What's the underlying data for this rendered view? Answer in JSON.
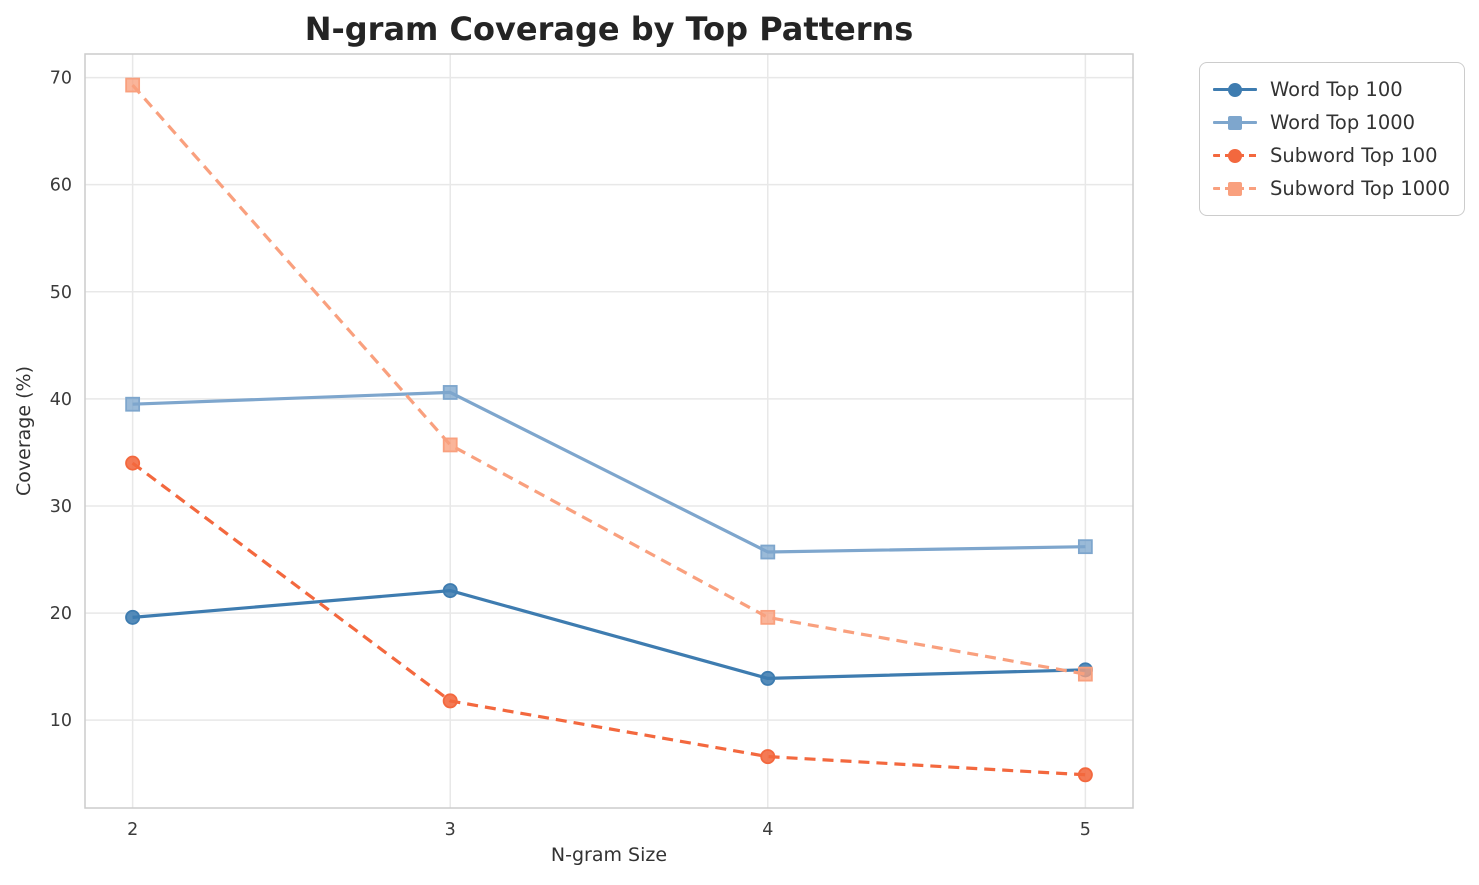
{
  "style": {
    "background": "#ffffff",
    "grid_color": "#e8e8e8",
    "spine_color": "#cccccc",
    "tick_color": "#3b3b3b",
    "title_color": "#242424",
    "label_color": "#333333",
    "legend_border": "#cccccc"
  },
  "chart_data": {
    "type": "line",
    "title": "N-gram Coverage by Top Patterns",
    "xlabel": "N-gram Size",
    "ylabel": "Coverage (%)",
    "x": [
      2,
      3,
      4,
      5
    ],
    "xticks": [
      "2",
      "3",
      "4",
      "5"
    ],
    "yticks": [
      10,
      20,
      30,
      40,
      50,
      60,
      70
    ],
    "xlim": [
      1.85,
      5.15
    ],
    "ylim": [
      1.8,
      72.2
    ],
    "grid": true,
    "legend_position": "outside-right",
    "series": [
      {
        "name": "Word Top 100",
        "color": "#3e7cb0",
        "marker": "circle",
        "line_style": "solid",
        "values": [
          19.6,
          22.1,
          13.9,
          14.7
        ]
      },
      {
        "name": "Word Top 1000",
        "color": "#7ea6cd",
        "marker": "square",
        "line_style": "solid",
        "values": [
          39.5,
          40.6,
          25.7,
          26.2
        ]
      },
      {
        "name": "Subword Top 100",
        "color": "#f3683e",
        "marker": "circle",
        "line_style": "dashed",
        "values": [
          34.0,
          11.8,
          6.6,
          4.9
        ]
      },
      {
        "name": "Subword Top 1000",
        "color": "#f9a07e",
        "marker": "square",
        "line_style": "dashed",
        "values": [
          69.3,
          35.7,
          19.6,
          14.3
        ]
      }
    ]
  }
}
